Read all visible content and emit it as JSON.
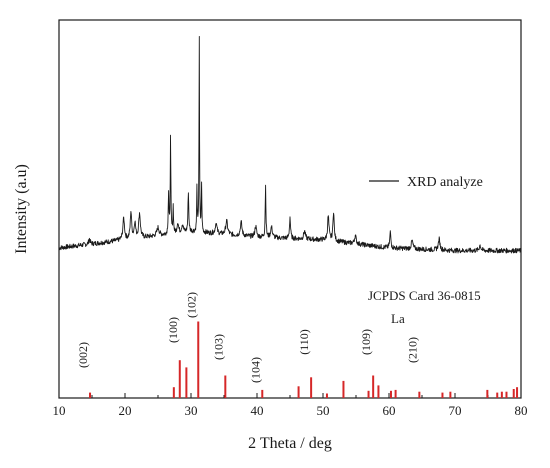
{
  "chart_data": {
    "type": "line",
    "xlabel": "2 Theta / deg",
    "ylabel": "Intensity (a.u)",
    "xlim": [
      10,
      80
    ],
    "x_ticks": [
      10,
      20,
      30,
      40,
      50,
      60,
      70,
      80
    ],
    "grid": false,
    "legend": {
      "label": "XRD analyze",
      "placement": "middle-right"
    },
    "reference": {
      "card_label": "JCPDS Card 36-0815",
      "element_label": "La",
      "color": "#d62728",
      "lines": [
        {
          "x": 14.7,
          "h": 0.06
        },
        {
          "x": 27.4,
          "h": 0.12
        },
        {
          "x": 28.3,
          "h": 0.42,
          "label": "(100)"
        },
        {
          "x": 29.3,
          "h": 0.34
        },
        {
          "x": 31.1,
          "h": 0.85,
          "label": "(102)"
        },
        {
          "x": 35.2,
          "h": 0.25,
          "label": "(103)"
        },
        {
          "x": 40.8,
          "h": 0.09,
          "label": "(104)"
        },
        {
          "x": 46.3,
          "h": 0.13
        },
        {
          "x": 48.2,
          "h": 0.23,
          "label": "(110)"
        },
        {
          "x": 50.6,
          "h": 0.05
        },
        {
          "x": 53.1,
          "h": 0.19
        },
        {
          "x": 56.9,
          "h": 0.08
        },
        {
          "x": 57.6,
          "h": 0.25,
          "label": "(109)"
        },
        {
          "x": 58.4,
          "h": 0.14
        },
        {
          "x": 60.3,
          "h": 0.08
        },
        {
          "x": 61.0,
          "h": 0.09
        },
        {
          "x": 64.6,
          "h": 0.07,
          "label": "(210)"
        },
        {
          "x": 68.1,
          "h": 0.06
        },
        {
          "x": 69.3,
          "h": 0.07
        },
        {
          "x": 74.9,
          "h": 0.09
        },
        {
          "x": 76.4,
          "h": 0.06
        },
        {
          "x": 77.1,
          "h": 0.07
        },
        {
          "x": 77.8,
          "h": 0.07
        },
        {
          "x": 78.9,
          "h": 0.1
        },
        {
          "x": 79.4,
          "h": 0.12
        }
      ],
      "miller_labels": [
        {
          "x": 14.7,
          "text": "(002)"
        },
        {
          "x": 28.3,
          "text": "(100)"
        },
        {
          "x": 31.1,
          "text": "(102)"
        },
        {
          "x": 35.2,
          "text": "(103)"
        },
        {
          "x": 40.8,
          "text": "(104)"
        },
        {
          "x": 48.2,
          "text": "(110)"
        },
        {
          "x": 57.6,
          "text": "(109)"
        },
        {
          "x": 64.6,
          "text": "(210)"
        }
      ]
    },
    "series": [
      {
        "name": "XRD analyze",
        "color": "#1a1a1a",
        "background": [
          [
            10,
            0.03
          ],
          [
            20,
            0.06
          ],
          [
            30,
            0.09
          ],
          [
            40,
            0.07
          ],
          [
            50,
            0.06
          ],
          [
            60,
            0.03
          ],
          [
            70,
            0.02
          ],
          [
            80,
            0.02
          ]
        ],
        "peaks": [
          [
            14.6,
            0.02,
            0.25
          ],
          [
            19.8,
            0.08,
            0.3
          ],
          [
            20.9,
            0.1,
            0.25
          ],
          [
            21.5,
            0.06,
            0.25
          ],
          [
            22.2,
            0.09,
            0.3
          ],
          [
            25.0,
            0.03,
            0.4
          ],
          [
            26.6,
            0.15,
            0.13
          ],
          [
            26.9,
            0.35,
            0.11
          ],
          [
            27.3,
            0.1,
            0.12
          ],
          [
            28.0,
            0.04,
            0.25
          ],
          [
            28.7,
            0.03,
            0.3
          ],
          [
            29.6,
            0.15,
            0.14
          ],
          [
            30.9,
            0.16,
            0.1
          ],
          [
            31.25,
            0.72,
            0.09
          ],
          [
            31.6,
            0.18,
            0.1
          ],
          [
            33.8,
            0.04,
            0.3
          ],
          [
            35.4,
            0.05,
            0.35
          ],
          [
            37.6,
            0.05,
            0.3
          ],
          [
            39.8,
            0.04,
            0.3
          ],
          [
            41.3,
            0.19,
            0.13
          ],
          [
            42.2,
            0.04,
            0.3
          ],
          [
            45.0,
            0.08,
            0.18
          ],
          [
            47.2,
            0.03,
            0.3
          ],
          [
            50.8,
            0.09,
            0.25
          ],
          [
            51.6,
            0.11,
            0.22
          ],
          [
            54.9,
            0.03,
            0.3
          ],
          [
            60.2,
            0.06,
            0.2
          ],
          [
            63.5,
            0.03,
            0.3
          ],
          [
            67.6,
            0.04,
            0.3
          ],
          [
            73.8,
            0.02,
            0.3
          ]
        ]
      }
    ]
  }
}
